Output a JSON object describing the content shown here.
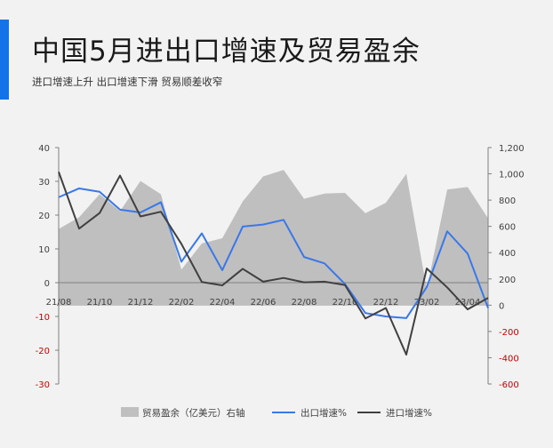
{
  "header": {
    "title": "中国5月进出口增速及贸易盈余",
    "subtitle": "进口增速上升 出口增速下滑 贸易顺差收窄"
  },
  "colors": {
    "accent": "#1473e6",
    "surplus_area": "#bfbfbf",
    "export_line": "#3a78e8",
    "import_line": "#404040",
    "negative_tick": "#cc0000"
  },
  "chart_data": {
    "type": "line",
    "x": [
      "21/08",
      "21/09",
      "21/10",
      "21/11",
      "21/12",
      "22/01",
      "22/02",
      "22/03",
      "22/04",
      "22/05",
      "22/06",
      "22/07",
      "22/08",
      "22/09",
      "22/10",
      "22/11",
      "22/12",
      "23/01",
      "23/02",
      "23/03",
      "23/04",
      "23/05"
    ],
    "x_tick_labels": [
      "21/08",
      "21/10",
      "21/12",
      "22/02",
      "22/04",
      "22/06",
      "22/08",
      "22/10",
      "22/12",
      "23/02",
      "23/04"
    ],
    "y_left": {
      "ticks": [
        "40",
        "30",
        "20",
        "10",
        "0",
        "-10",
        "-20",
        "-30"
      ],
      "lim": [
        -30,
        40
      ]
    },
    "y_right": {
      "ticks": [
        "1,200",
        "1,000",
        "800",
        "600",
        "400",
        "200",
        "0",
        "-200",
        "-400",
        "-600"
      ],
      "lim": [
        -600,
        1200
      ]
    },
    "series": [
      {
        "name": "贸易盈余（亿美元）右轴",
        "type": "area",
        "axis": "right",
        "values": [
          580,
          670,
          845,
          715,
          945,
          845,
          270,
          470,
          510,
          790,
          980,
          1030,
          810,
          850,
          855,
          700,
          780,
          1000,
          120,
          880,
          900,
          660
        ]
      },
      {
        "name": "出口增速%",
        "type": "line",
        "axis": "left",
        "values": [
          25.3,
          27.9,
          26.9,
          21.6,
          20.8,
          23.8,
          6.2,
          14.6,
          3.7,
          16.6,
          17.2,
          18.6,
          7.6,
          5.7,
          -0.4,
          -9.0,
          -10.0,
          -10.5,
          -1.3,
          15.2,
          8.6,
          -7.5
        ]
      },
      {
        "name": "进口增速%",
        "type": "line",
        "axis": "left",
        "values": [
          32.8,
          16.0,
          20.6,
          31.7,
          19.6,
          21.0,
          11.5,
          0.2,
          -0.8,
          4.1,
          0.3,
          1.4,
          0.1,
          0.3,
          -0.7,
          -10.6,
          -7.5,
          -21.3,
          4.2,
          -1.4,
          -7.9,
          -4.5
        ]
      }
    ],
    "legend": [
      {
        "label": "贸易盈余（亿美元）右轴",
        "kind": "area"
      },
      {
        "label": "出口增速%",
        "kind": "line-blue"
      },
      {
        "label": "进口增速%",
        "kind": "line-dark"
      }
    ],
    "legend_position": "bottom",
    "grid": false
  }
}
